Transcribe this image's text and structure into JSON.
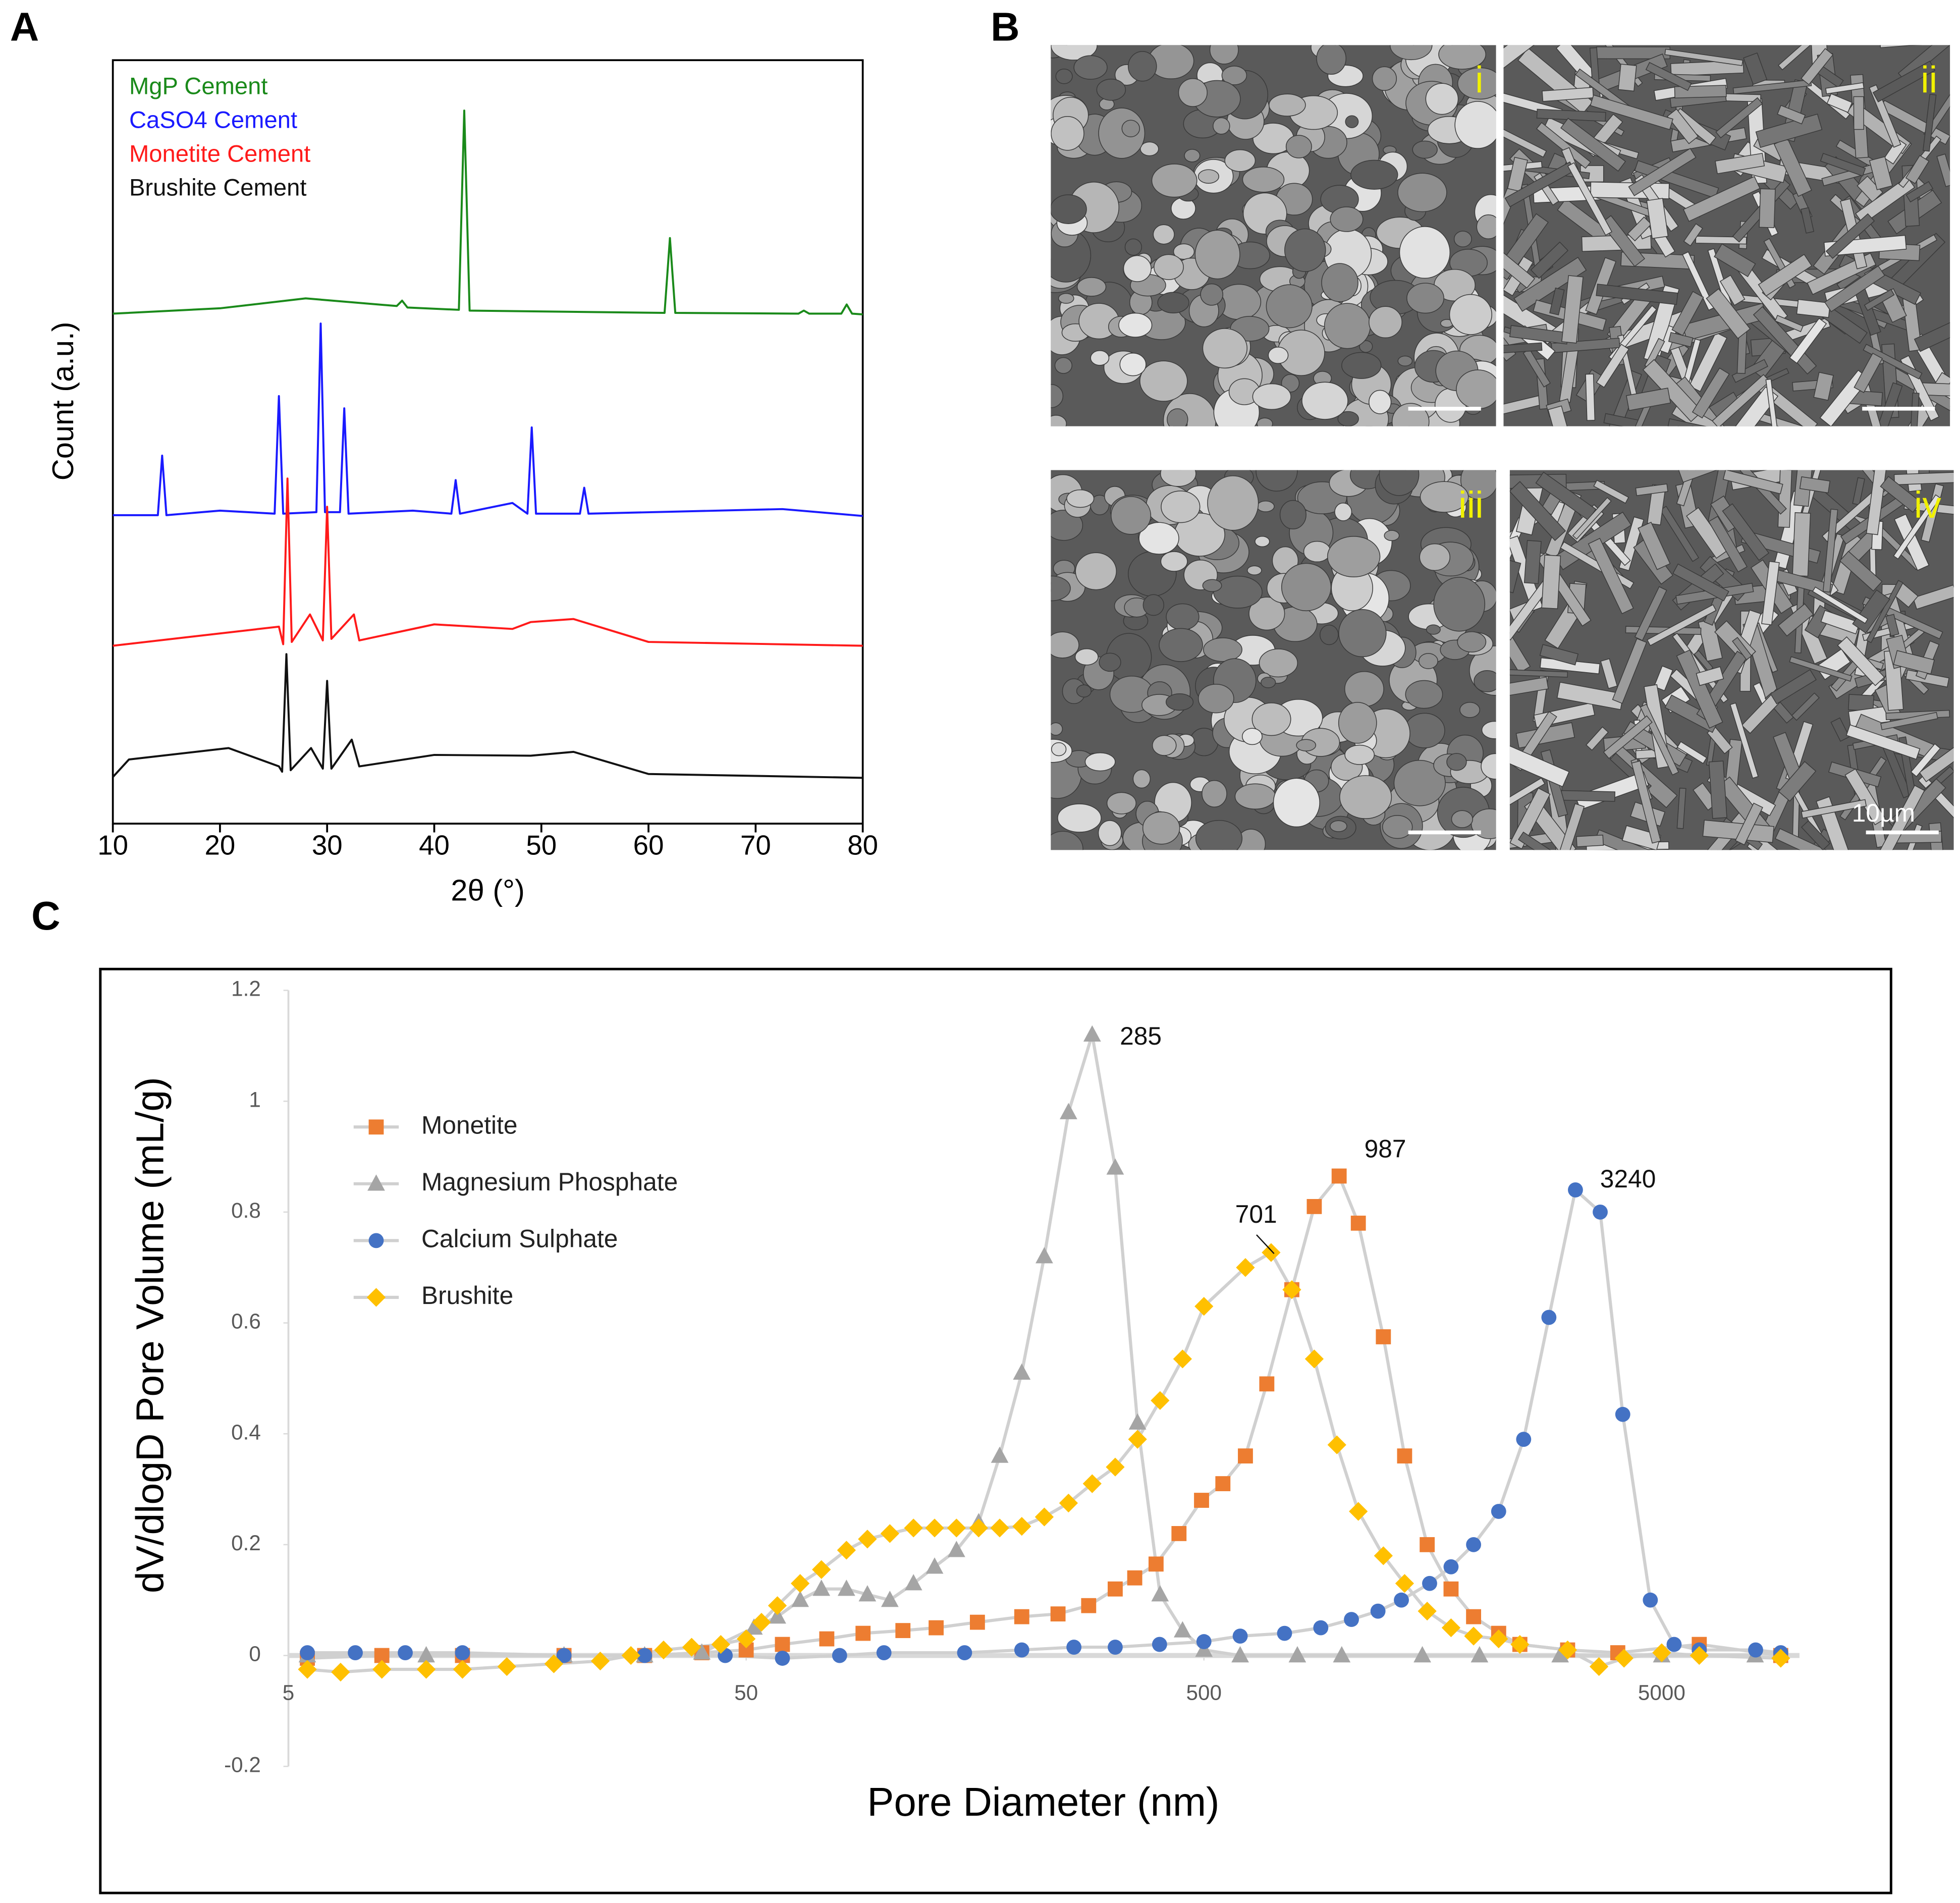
{
  "chart_data": [
    {
      "type": "line",
      "panel": "A",
      "xlabel": "2θ (°)",
      "ylabel": "Count (a.u.)",
      "xlim": [
        10,
        80
      ],
      "xticks": [
        10,
        20,
        30,
        40,
        50,
        60,
        70,
        80
      ],
      "ylim": [
        0,
        100
      ],
      "series": [
        {
          "name": "MgP Cement",
          "color": "#1a8a1a",
          "x": [
            10,
            20,
            28,
            36.5,
            37,
            37.5,
            42.3,
            42.8,
            43.3,
            61.5,
            62,
            62.5,
            74,
            74.5,
            75,
            78,
            78.5,
            79,
            80
          ],
          "values": [
            66.8,
            67.5,
            68.8,
            67.8,
            68.5,
            67.6,
            67.3,
            93.4,
            67.2,
            66.9,
            76.7,
            66.9,
            66.8,
            67.2,
            66.8,
            66.8,
            68,
            66.8,
            66.7
          ]
        },
        {
          "name": "CaSO4 Cement",
          "color": "#1a1aff",
          "x": [
            10,
            14.2,
            14.6,
            15,
            20,
            25.1,
            25.5,
            25.9,
            29,
            29.4,
            29.8,
            31.2,
            31.6,
            32,
            38,
            41.6,
            42,
            42.4,
            47.3,
            48.7,
            49.1,
            49.5,
            53.6,
            54,
            54.4,
            72.5,
            80
          ],
          "values": [
            40.4,
            40.4,
            48.2,
            40.4,
            41,
            40.6,
            56,
            40.6,
            40.8,
            65.5,
            40.8,
            40.8,
            54.4,
            40.6,
            41,
            40.6,
            45,
            40.6,
            42,
            40.6,
            51.9,
            40.6,
            40.6,
            44,
            40.6,
            41.2,
            40.3
          ]
        },
        {
          "name": "Monetite Cement",
          "color": "#ff1a1a",
          "x": [
            10,
            25.5,
            25.9,
            26.3,
            26.7,
            28.4,
            29.6,
            30,
            30.4,
            32.5,
            33,
            40,
            47.3,
            49,
            53,
            60,
            80
          ],
          "values": [
            23.3,
            25.8,
            23.5,
            45.2,
            23.8,
            27.4,
            24,
            41.5,
            24.2,
            27.4,
            24,
            26.1,
            25.5,
            26.4,
            26.8,
            23.8,
            23.3
          ]
        },
        {
          "name": "Brushite Cement",
          "color": "#111111",
          "x": [
            10,
            11.5,
            20.8,
            25.5,
            25.8,
            26.2,
            26.6,
            28.5,
            29.6,
            30,
            30.4,
            32.3,
            33,
            40,
            49,
            53,
            60,
            80
          ],
          "values": [
            6.1,
            8.4,
            9.9,
            7.5,
            6.8,
            22.2,
            7,
            9.9,
            7.2,
            18.7,
            7.2,
            11,
            7.5,
            9,
            8.9,
            9.4,
            6.5,
            6
          ]
        }
      ]
    },
    {
      "type": "scatter",
      "panel": "C",
      "xlabel": "Pore Diameter (nm)",
      "ylabel": "dV/dlogD Pore Volume  (mL/g)",
      "xscale": "log",
      "xlim": [
        5,
        10000
      ],
      "xticks": [
        5,
        50,
        500,
        5000
      ],
      "ylim": [
        -0.2,
        1.2
      ],
      "yticks": [
        -0.2,
        0,
        0.2,
        0.4,
        0.6,
        0.8,
        1,
        1.2
      ],
      "line_color": "#d0d0d0",
      "legend": "upper left",
      "annotations": [
        "285",
        "987",
        "701",
        "3240"
      ],
      "series": [
        {
          "name": "Monetite",
          "color": "#ed7d31",
          "marker": "square",
          "x": [
            5.5,
            8,
            12,
            20,
            30,
            40,
            50,
            60,
            75,
            90,
            110,
            130,
            160,
            200,
            240,
            280,
            320,
            353,
            393,
            441,
            494,
            550,
            616,
            686,
            778,
            871,
            987,
            1087,
            1233,
            1372,
            1537,
            1733,
            1941,
            2202,
            2450,
            3115,
            4009,
            6040,
            9100
          ],
          "values": [
            -0.005,
            0,
            0,
            0,
            0,
            0.005,
            0.01,
            0.02,
            0.03,
            0.04,
            0.045,
            0.05,
            0.06,
            0.07,
            0.075,
            0.09,
            0.12,
            0.14,
            0.165,
            0.22,
            0.28,
            0.31,
            0.36,
            0.49,
            0.66,
            0.81,
            0.865,
            0.78,
            0.575,
            0.36,
            0.2,
            0.12,
            0.07,
            0.04,
            0.02,
            0.01,
            0.005,
            0.02,
            0
          ]
        },
        {
          "name": "Magnesium Phosphate",
          "color": "#a5a5a5",
          "marker": "triangle",
          "x": [
            5.5,
            10,
            20,
            30,
            40,
            52,
            58.5,
            65.6,
            73,
            82.8,
            92,
            103,
            116,
            129,
            144,
            161,
            179,
            200,
            224,
            253,
            285,
            320,
            358,
            401,
            449,
            500,
            600,
            800,
            1000,
            1500,
            2000,
            3000,
            5000,
            8000
          ],
          "values": [
            0,
            0,
            0,
            0,
            0.005,
            0.05,
            0.07,
            0.1,
            0.12,
            0.12,
            0.11,
            0.1,
            0.13,
            0.16,
            0.19,
            0.24,
            0.36,
            0.51,
            0.72,
            0.98,
            1.12,
            0.88,
            0.42,
            0.11,
            0.045,
            0.01,
            0,
            0,
            0,
            0,
            0,
            0,
            0,
            0
          ]
        },
        {
          "name": "Calcium Sulphate",
          "color": "#4472c4",
          "marker": "circle",
          "x": [
            5.5,
            7,
            9,
            12,
            20,
            30,
            45,
            60,
            80,
            100,
            150,
            200,
            260,
            320,
            400,
            500,
            600,
            750,
            900,
            1050,
            1200,
            1350,
            1556,
            1733,
            1941,
            2202,
            2497,
            2835,
            3240,
            3670,
            4111,
            4722,
            5322,
            6040,
            8020,
            9100
          ],
          "values": [
            0.005,
            0.005,
            0.005,
            0.005,
            0,
            0,
            0,
            -0.005,
            0,
            0.005,
            0.005,
            0.01,
            0.015,
            0.015,
            0.02,
            0.025,
            0.035,
            0.04,
            0.05,
            0.065,
            0.08,
            0.1,
            0.13,
            0.16,
            0.2,
            0.26,
            0.39,
            0.61,
            0.84,
            0.8,
            0.435,
            0.1,
            0.02,
            0.01,
            0.01,
            0.005
          ]
        },
        {
          "name": "Brushite",
          "color": "#ffc000",
          "marker": "diamond",
          "x": [
            5.5,
            6.5,
            8,
            10,
            12,
            15,
            19,
            24,
            28,
            33,
            38,
            44,
            50,
            54,
            58.5,
            65.6,
            73,
            82.8,
            92,
            103,
            116,
            129,
            144,
            161,
            179,
            200,
            224,
            253,
            285,
            320,
            358,
            401,
            449,
            500,
            616,
            701,
            778,
            871,
            976,
            1087,
            1233,
            1372,
            1537,
            1733,
            1941,
            2202,
            2450,
            3115,
            3647,
            4137,
            5000,
            6040,
            9100
          ],
          "values": [
            -0.025,
            -0.03,
            -0.025,
            -0.025,
            -0.025,
            -0.02,
            -0.015,
            -0.01,
            0,
            0.01,
            0.015,
            0.02,
            0.03,
            0.06,
            0.09,
            0.13,
            0.155,
            0.19,
            0.21,
            0.22,
            0.23,
            0.23,
            0.23,
            0.23,
            0.23,
            0.233,
            0.25,
            0.275,
            0.31,
            0.34,
            0.39,
            0.46,
            0.535,
            0.63,
            0.7,
            0.727,
            0.66,
            0.535,
            0.38,
            0.26,
            0.18,
            0.13,
            0.08,
            0.05,
            0.035,
            0.03,
            0.02,
            0.01,
            -0.02,
            -0.005,
            0.005,
            0,
            -0.005
          ]
        }
      ]
    }
  ],
  "micrographs": {
    "panel": "B",
    "labels": [
      "i",
      "ii",
      "iii",
      "iv"
    ],
    "scale_bar": "10µm"
  }
}
